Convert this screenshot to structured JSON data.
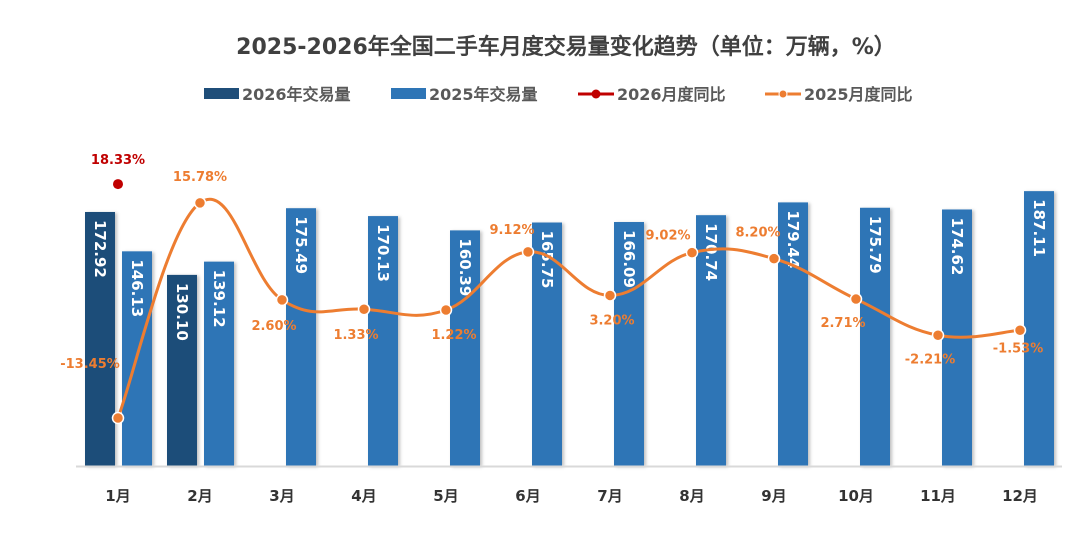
{
  "chart_data": {
    "type": "bar",
    "title": "2025-2026年全国二手车月度交易量变化趋势（单位：万辆，%）",
    "categories": [
      "1月",
      "2月",
      "3月",
      "4月",
      "5月",
      "6月",
      "7月",
      "8月",
      "9月",
      "10月",
      "11月",
      "12月"
    ],
    "legend_position": "top",
    "grid": false,
    "series": [
      {
        "name": "2026年交易量",
        "type": "bar",
        "color": "#1f4e79",
        "values": [
          172.92,
          130.1,
          null,
          null,
          null,
          null,
          null,
          null,
          null,
          null,
          null,
          null
        ]
      },
      {
        "name": "2025年交易量",
        "type": "bar",
        "color": "#2e75b6",
        "values": [
          146.13,
          139.12,
          175.49,
          170.13,
          160.39,
          165.75,
          166.09,
          170.74,
          179.44,
          175.79,
          174.62,
          187.11
        ]
      },
      {
        "name": "2026月度同比",
        "type": "line",
        "color": "#c00000",
        "values": [
          18.33,
          null,
          null,
          null,
          null,
          null,
          null,
          null,
          null,
          null,
          null,
          null
        ],
        "labels": [
          "18.33%"
        ]
      },
      {
        "name": "2025月度同比",
        "type": "line",
        "color": "#ed7d31",
        "values": [
          -13.45,
          15.78,
          2.6,
          1.33,
          1.22,
          9.12,
          3.2,
          9.02,
          8.2,
          2.71,
          -2.21,
          -1.53
        ],
        "labels": [
          "-13.45%",
          "15.78%",
          "2.60%",
          "1.33%",
          "1.22%",
          "9.12%",
          "3.20%",
          "9.02%",
          "8.20%",
          "2.71%",
          "-2.21%",
          "-1.53%"
        ]
      }
    ],
    "bar_labels": {
      "2026": [
        "172.92",
        "130.10"
      ],
      "2025": [
        "146.13",
        "139.12",
        "175.49",
        "170.13",
        "160.39",
        "165.75",
        "166.09",
        "170.74",
        "179.44",
        "175.79",
        "174.62",
        "187.11"
      ]
    }
  }
}
